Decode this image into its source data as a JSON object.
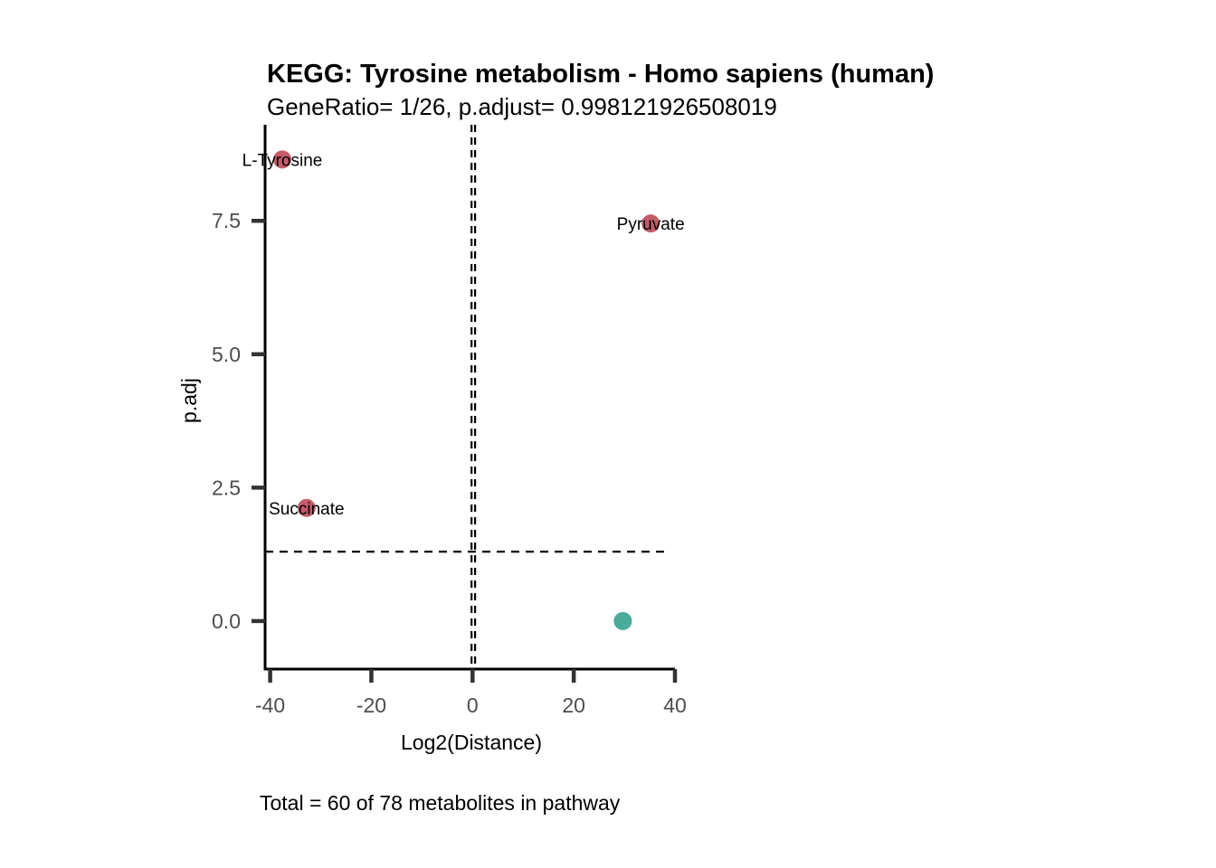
{
  "chart_data": {
    "type": "scatter",
    "title": "KEGG: Tyrosine metabolism - Homo sapiens (human)",
    "subtitle": "GeneRatio= 1/26, p.adjust= 0.998121926508019",
    "xlabel": "Log2(Distance)",
    "ylabel": "p.adj",
    "caption": "Total = 60 of 78 metabolites in pathway",
    "xlim": [
      -41,
      40
    ],
    "ylim": [
      -0.9,
      9.3
    ],
    "x_ticks": [
      -40,
      -20,
      0,
      20,
      40
    ],
    "x_tick_labels": [
      "-40",
      "-20",
      "0",
      "20",
      "40"
    ],
    "y_ticks": [
      0,
      2.5,
      5,
      7.5
    ],
    "y_tick_labels": [
      "0.0",
      "2.5",
      "5.0",
      "7.5"
    ],
    "grid": false,
    "reference_lines": {
      "vertical": [
        -0.2,
        0.5
      ],
      "horizontal": [
        1.3
      ]
    },
    "points": [
      {
        "label": "L-Tyrosine",
        "x": -37.6,
        "y": 8.65,
        "color": "#c45c6a"
      },
      {
        "label": "Pyruvate",
        "x": 35.2,
        "y": 7.45,
        "color": "#c45c6a"
      },
      {
        "label": "Succinate",
        "x": -32.8,
        "y": 2.12,
        "color": "#c45c6a"
      },
      {
        "label": "",
        "x": 29.7,
        "y": 0.0,
        "color": "#4aab99"
      }
    ]
  }
}
